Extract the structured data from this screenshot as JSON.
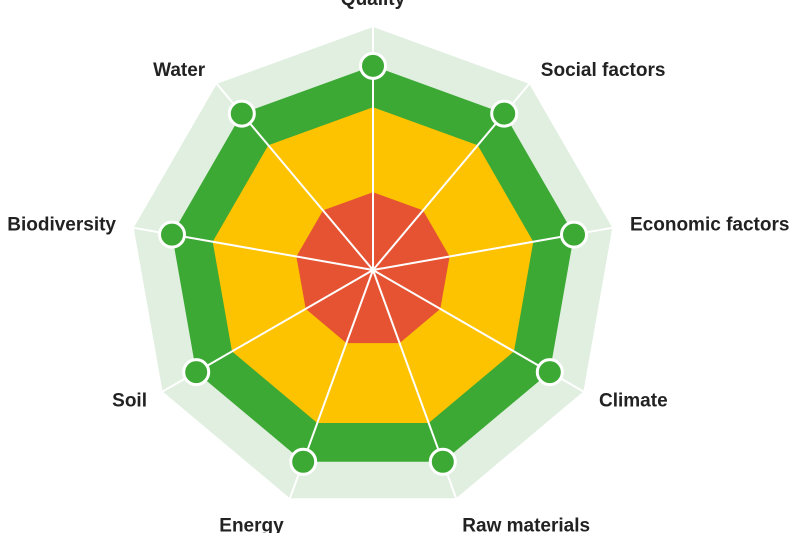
{
  "chart_data": {
    "type": "radar",
    "title": "",
    "axes": [
      "Quality",
      "Social factors",
      "Economic factors",
      "Climate",
      "Raw materials",
      "Energy",
      "Soil",
      "Biodiversity",
      "Water"
    ],
    "rlim": [
      0,
      1
    ],
    "bands": [
      {
        "level": 1.0,
        "color": "#E0EFE0"
      },
      {
        "level": 0.84,
        "color": "#3DA935"
      },
      {
        "level": 0.67,
        "color": "#FDC300"
      },
      {
        "level": 0.32,
        "color": "#E65332"
      }
    ],
    "series": [
      {
        "values": [
          0.84,
          0.84,
          0.84,
          0.84,
          0.84,
          0.84,
          0.84,
          0.84,
          0.84
        ],
        "marker_color": "#3DA935"
      }
    ],
    "grid": true,
    "legend": "none"
  }
}
